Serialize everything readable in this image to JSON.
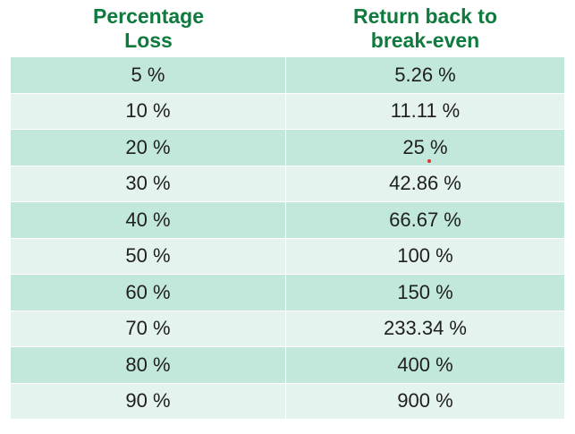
{
  "table": {
    "headers": {
      "loss": "Percentage\nLoss",
      "return": "Return back to\nbreak-even"
    },
    "rows": [
      {
        "loss": "5 %",
        "return": "5.26 %"
      },
      {
        "loss": "10 %",
        "return": "11.11 %"
      },
      {
        "loss": "20 %",
        "return": "25 %"
      },
      {
        "loss": "30 %",
        "return": "42.86 %"
      },
      {
        "loss": "40 %",
        "return": "66.67 %"
      },
      {
        "loss": "50 %",
        "return": "100 %"
      },
      {
        "loss": "60 %",
        "return": "150 %"
      },
      {
        "loss": "70 %",
        "return": "233.34 %"
      },
      {
        "loss": "80 %",
        "return": "400 %"
      },
      {
        "loss": "90 %",
        "return": "900 %"
      }
    ]
  },
  "colors": {
    "header_text": "#0f7a3d",
    "row_dark": "#c2e8dc",
    "row_light": "#e4f3ed",
    "cell_text": "#1f1f1f",
    "marker": "#e0322d"
  }
}
